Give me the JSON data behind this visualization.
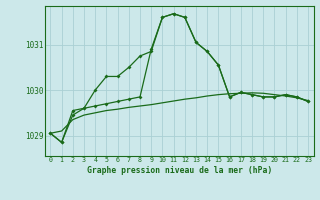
{
  "title": "Graphe pression niveau de la mer (hPa)",
  "background_color": "#cce8ea",
  "grid_color": "#aad0d4",
  "line_color": "#1a6b1a",
  "x_ticks": [
    0,
    1,
    2,
    3,
    4,
    5,
    6,
    7,
    8,
    9,
    10,
    11,
    12,
    13,
    14,
    15,
    16,
    17,
    18,
    19,
    20,
    21,
    22,
    23
  ],
  "y_ticks": [
    1029,
    1030,
    1031
  ],
  "ylim": [
    1028.55,
    1031.85
  ],
  "xlim": [
    -0.5,
    23.5
  ],
  "series1": [
    1029.05,
    1028.85,
    1029.45,
    1029.6,
    1029.65,
    1029.7,
    1029.75,
    1029.8,
    1029.85,
    1030.9,
    1031.6,
    1031.68,
    1031.6,
    1031.05,
    1030.85,
    1030.55,
    1029.85,
    1029.95,
    1029.9,
    1029.85,
    1029.85,
    1029.9,
    1029.85,
    1029.75
  ],
  "series2": [
    1029.05,
    1028.85,
    1029.55,
    1029.6,
    1030.0,
    1030.3,
    1030.3,
    1030.5,
    1030.75,
    1030.85,
    1031.6,
    1031.68,
    1031.6,
    1031.05,
    1030.85,
    1030.55,
    1029.85,
    1029.95,
    1029.9,
    1029.85,
    1029.85,
    1029.9,
    1029.85,
    1029.75
  ],
  "smooth_line": [
    1029.05,
    1029.1,
    1029.35,
    1029.45,
    1029.5,
    1029.55,
    1029.58,
    1029.62,
    1029.65,
    1029.68,
    1029.72,
    1029.76,
    1029.8,
    1029.83,
    1029.87,
    1029.9,
    1029.92,
    1029.93,
    1029.94,
    1029.93,
    1029.9,
    1029.87,
    1029.83,
    1029.77
  ]
}
